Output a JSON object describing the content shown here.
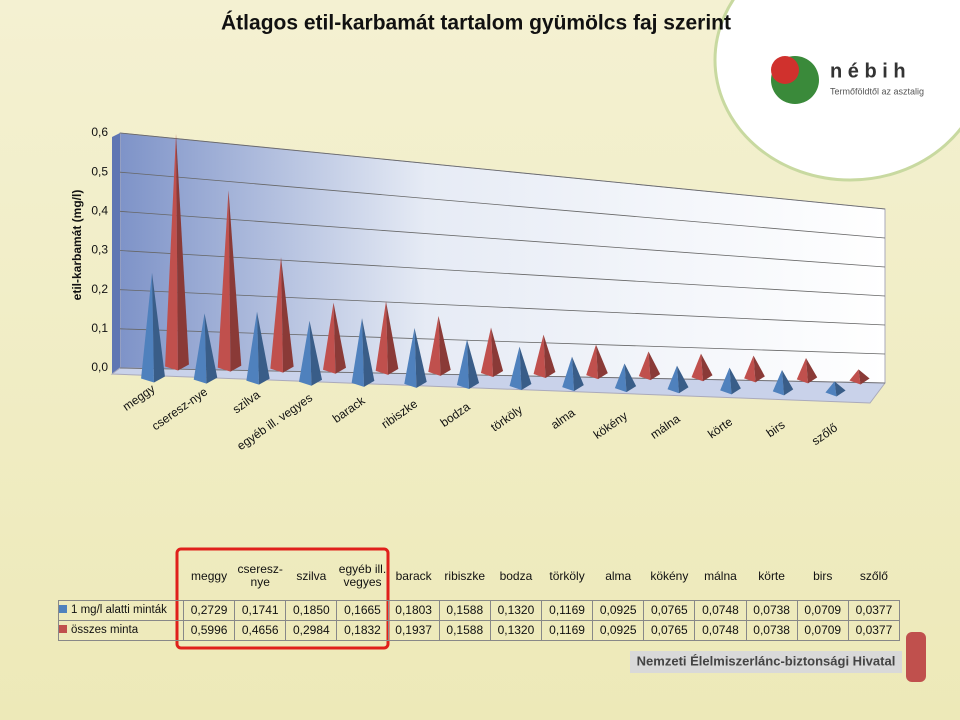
{
  "chart_data": {
    "type": "pyramid3d",
    "title": "Átlagos etil-karbamát tartalom gyümölcs faj szerint",
    "y_label": "etil-karbamát (mg/l)",
    "categories": [
      "meggy",
      "cseresz-nye",
      "szilva",
      "egyéb ill. vegyes",
      "barack",
      "ribiszke",
      "bodza",
      "törköly",
      "alma",
      "kökény",
      "málna",
      "körte",
      "birs",
      "szőlő"
    ],
    "series": [
      {
        "name": "1 mg/l alatti minták",
        "color": "#4f81bd",
        "values": [
          0.2729,
          0.1741,
          0.185,
          0.1665,
          0.1803,
          0.1588,
          0.132,
          0.1169,
          0.0925,
          0.0765,
          0.0748,
          0.0738,
          0.0709,
          0.0377
        ],
        "value_labels": [
          "0,2729",
          "0,1741",
          "0,1850",
          "0,1665",
          "0,1803",
          "0,1588",
          "0,1320",
          "0,1169",
          "0,0925",
          "0,0765",
          "0,0748",
          "0,0738",
          "0,0709",
          "0,0377"
        ]
      },
      {
        "name": "összes minta",
        "color": "#c0504d",
        "values": [
          0.5996,
          0.4656,
          0.2984,
          0.1832,
          0.1937,
          0.1588,
          0.132,
          0.1169,
          0.0925,
          0.0765,
          0.0748,
          0.0738,
          0.0709,
          0.0377
        ],
        "value_labels": [
          "0,5996",
          "0,4656",
          "0,2984",
          "0,1832",
          "0,1937",
          "0,1588",
          "0,1320",
          "0,1169",
          "0,0925",
          "0,0765",
          "0,0748",
          "0,0738",
          "0,0709",
          "0,0377"
        ]
      }
    ],
    "ylim": [
      0,
      0.6
    ],
    "yticks": [
      {
        "value": 0,
        "label": "0,0"
      },
      {
        "value": 0.1,
        "label": "0,1"
      },
      {
        "value": 0.2,
        "label": "0,2"
      },
      {
        "value": 0.3,
        "label": "0,3"
      },
      {
        "value": 0.4,
        "label": "0,4"
      },
      {
        "value": 0.5,
        "label": "0,5"
      },
      {
        "value": 0.6,
        "label": "0,6"
      }
    ],
    "grid": true
  },
  "logo": {
    "name": "n é b i h",
    "slogan": "Termőföldtől az asztalig"
  },
  "footer": "Nemzeti Élelmiszerlánc-biztonsági Hivatal"
}
